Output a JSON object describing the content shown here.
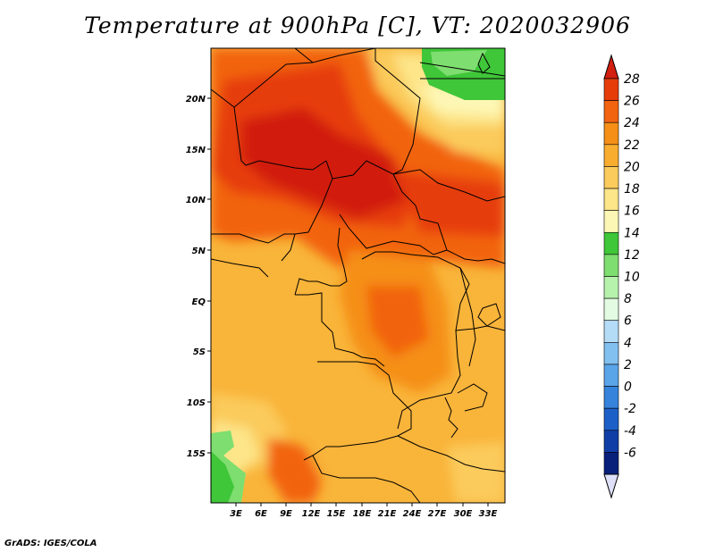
{
  "title": "Temperature at 900hPa [C], VT: 2020032906",
  "credit": "GrADS: IGES/COLA",
  "map": {
    "lat_ticks": [
      "20N",
      "15N",
      "10N",
      "5N",
      "EQ",
      "5S",
      "10S",
      "15S"
    ],
    "lon_ticks": [
      "3E",
      "6E",
      "9E",
      "12E",
      "15E",
      "18E",
      "21E",
      "24E",
      "27E",
      "30E",
      "33E"
    ]
  },
  "colorbar": {
    "labels": [
      "28",
      "26",
      "24",
      "22",
      "20",
      "18",
      "16",
      "14",
      "12",
      "10",
      "8",
      "6",
      "4",
      "2",
      "0",
      "-2",
      "-4",
      "-6"
    ],
    "colors": [
      "#d11f10",
      "#e63c0a",
      "#f2640f",
      "#f58f16",
      "#f9ad2e",
      "#fbcb5c",
      "#fde589",
      "#fdf7b5",
      "#3fc639",
      "#7ede6f",
      "#b7f2ad",
      "#e2fbe2",
      "#b4dcf7",
      "#82c0f0",
      "#5aa4e8",
      "#3683dc",
      "#1c60c7",
      "#0f3fa6",
      "#08207a",
      "#dde0f7"
    ]
  }
}
